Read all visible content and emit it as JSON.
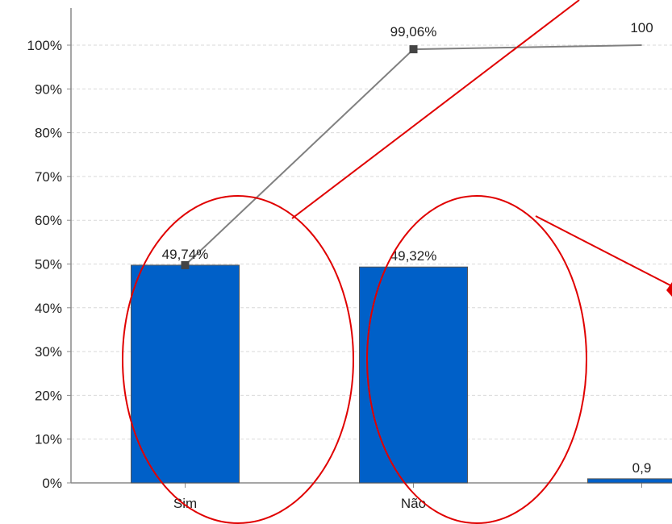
{
  "chart_data": {
    "type": "bar",
    "categories": [
      "Sim",
      "Não",
      ""
    ],
    "series": [
      {
        "values": [
          49.74,
          49.32,
          0.94
        ],
        "color": "#0060c8",
        "labels": [
          "49,74%",
          "49,32%",
          "0,9"
        ]
      },
      {
        "type": "line",
        "values": [
          49.74,
          99.06,
          100
        ],
        "color": "#808080",
        "labels": [
          "",
          "99,06%",
          "100"
        ]
      }
    ],
    "ylim": [
      0,
      100
    ],
    "y_ticks": [
      "0%",
      "10%",
      "20%",
      "30%",
      "40%",
      "50%",
      "60%",
      "70%",
      "80%",
      "90%",
      "100%"
    ],
    "grid": true,
    "annotations": {
      "ellipses_around": [
        "Sim",
        "Não"
      ],
      "annotation_color": "#e00000"
    }
  }
}
